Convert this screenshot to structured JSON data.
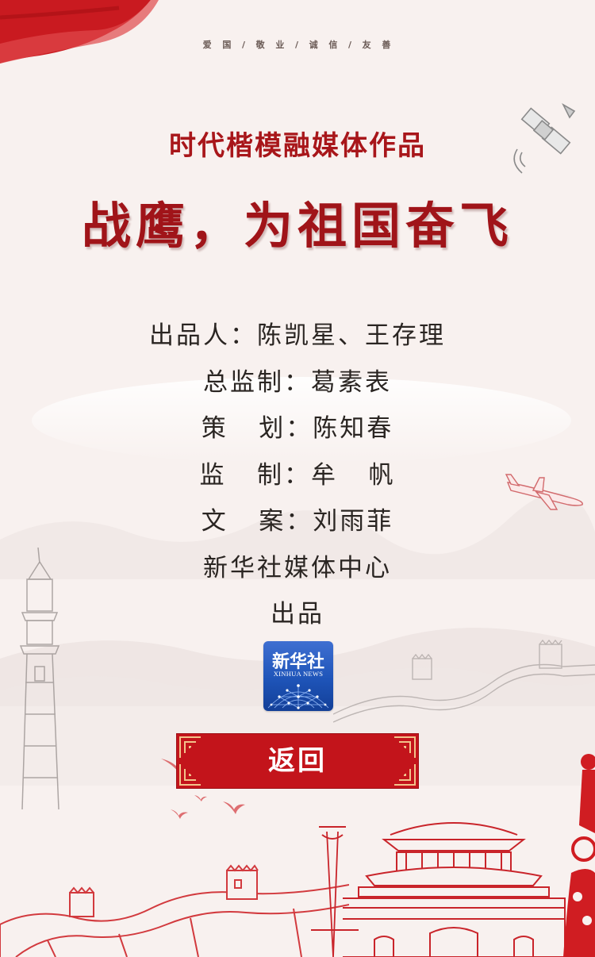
{
  "header": {
    "slogan": "爱  国  /  敬  业  /  诚  信  /  友  善"
  },
  "subtitle": "时代楷模融媒体作品",
  "title": "战鹰，为祖国奋飞",
  "credits": [
    "出品人：陈凯星、王存理",
    "总监制：葛素表",
    "策   划：陈知春",
    "监   制：牟   帆",
    "文   案：刘雨菲",
    "新华社媒体中心",
    "出品"
  ],
  "logo": {
    "name_cn": "新华社",
    "name_en": "XINHUA NEWS"
  },
  "back_button": {
    "label": "返回"
  },
  "colors": {
    "background": "#f8f1ef",
    "accent_red": "#c3141b",
    "title_red": "#a01419",
    "logo_blue": "#1e54b8"
  },
  "icons": [
    "flag-icon",
    "satellite-icon",
    "airplane-icon",
    "lighthouse-icon",
    "great-wall-icon",
    "tiananmen-icon",
    "birds-icon"
  ]
}
